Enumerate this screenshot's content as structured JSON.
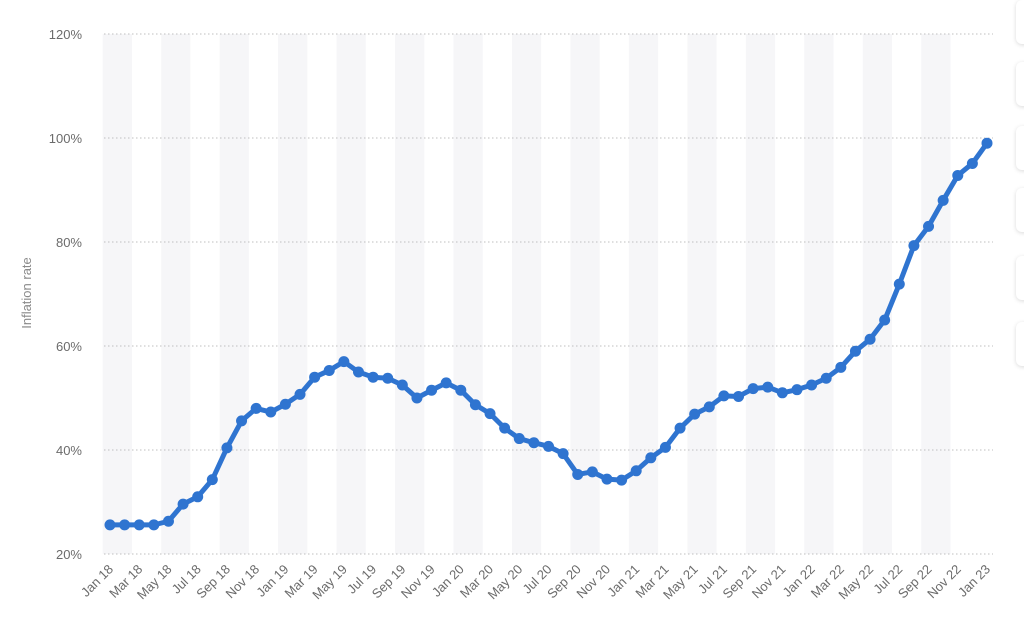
{
  "chart_data": {
    "type": "line",
    "title": "",
    "xlabel": "",
    "ylabel": "Inflation rate",
    "ylim": [
      20,
      120
    ],
    "yticks": [
      "20%",
      "40%",
      "60%",
      "80%",
      "100%",
      "120%"
    ],
    "ytick_values": [
      20,
      40,
      60,
      80,
      100,
      120
    ],
    "x": [
      "Jan 18",
      "Feb 18",
      "Mar 18",
      "Apr 18",
      "May 18",
      "Jun 18",
      "Jul 18",
      "Aug 18",
      "Sep 18",
      "Oct 18",
      "Nov 18",
      "Dec 18",
      "Jan 19",
      "Feb 19",
      "Mar 19",
      "Apr 19",
      "May 19",
      "Jun 19",
      "Jul 19",
      "Aug 19",
      "Sep 19",
      "Oct 19",
      "Nov 19",
      "Dec 19",
      "Jan 20",
      "Feb 20",
      "Mar 20",
      "Apr 20",
      "May 20",
      "Jun 20",
      "Jul 20",
      "Aug 20",
      "Sep 20",
      "Oct 20",
      "Nov 20",
      "Dec 20",
      "Jan 21",
      "Feb 21",
      "Mar 21",
      "Apr 21",
      "May 21",
      "Jun 21",
      "Jul 21",
      "Aug 21",
      "Sep 21",
      "Oct 21",
      "Nov 21",
      "Dec 21",
      "Jan 22",
      "Feb 22",
      "Mar 22",
      "Apr 22",
      "May 22",
      "Jun 22",
      "Jul 22",
      "Aug 22",
      "Sep 22",
      "Oct 22",
      "Nov 22",
      "Dec 22",
      "Jan 23"
    ],
    "x_tick_labels": [
      "Jan 18",
      "Mar 18",
      "May 18",
      "Jul 18",
      "Sep 18",
      "Nov 18",
      "Jan 19",
      "Mar 19",
      "May 19",
      "Jul 19",
      "Sep 19",
      "Nov 19",
      "Jan 20",
      "Mar 20",
      "May 20",
      "Jul 20",
      "Sep 20",
      "Nov 20",
      "Jan 21",
      "Mar 21",
      "May 21",
      "Jul 21",
      "Sep 21",
      "Nov 21",
      "Jan 22",
      "Mar 22",
      "May 22",
      "Jul 22",
      "Sep 22",
      "Nov 22",
      "Jan 23"
    ],
    "series": [
      {
        "name": "",
        "color": "#2f74d0",
        "values": [
          25.6,
          25.6,
          25.6,
          25.6,
          26.3,
          29.6,
          31.0,
          34.3,
          40.4,
          45.6,
          48.0,
          47.3,
          48.8,
          50.7,
          54.0,
          55.3,
          57.0,
          55.0,
          54.0,
          53.8,
          52.5,
          50.0,
          51.5,
          52.9,
          51.5,
          48.7,
          47.0,
          44.2,
          42.2,
          41.4,
          40.7,
          39.3,
          35.3,
          35.8,
          34.4,
          34.2,
          36.0,
          38.5,
          40.5,
          44.2,
          46.9,
          48.3,
          50.4,
          50.3,
          51.8,
          52.1,
          51.0,
          51.6,
          52.5,
          53.8,
          55.9,
          59.0,
          61.3,
          65.0,
          71.9,
          79.3,
          83.0,
          88.0,
          92.8,
          95.1,
          99.0
        ]
      }
    ],
    "grid": true
  }
}
